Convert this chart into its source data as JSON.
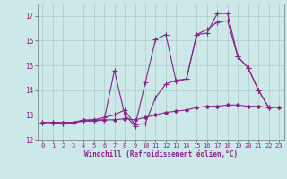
{
  "background_color": "#cce8e8",
  "grid_color": "#aacccc",
  "line_color": "#882288",
  "xlim": [
    -0.5,
    23.5
  ],
  "ylim": [
    12,
    17.5
  ],
  "yticks": [
    12,
    13,
    14,
    15,
    16,
    17
  ],
  "xticks": [
    0,
    1,
    2,
    3,
    4,
    5,
    6,
    7,
    8,
    9,
    10,
    11,
    12,
    13,
    14,
    15,
    16,
    17,
    18,
    19,
    20,
    21,
    22,
    23
  ],
  "xlabel": "Windchill (Refroidissement éolien,°C)",
  "series": [
    {
      "x": [
        0,
        1,
        2,
        3,
        4,
        5,
        6,
        7,
        8,
        9,
        10,
        11,
        12,
        13,
        14,
        15,
        16,
        17,
        18,
        19,
        20,
        21,
        22,
        23
      ],
      "y": [
        12.7,
        12.7,
        12.7,
        12.7,
        12.8,
        12.8,
        12.8,
        12.8,
        12.85,
        12.8,
        12.9,
        13.0,
        13.1,
        13.15,
        13.2,
        13.3,
        13.35,
        13.35,
        13.4,
        13.4,
        13.35,
        13.35,
        13.3,
        13.3
      ],
      "marker": "D",
      "markersize": 2.0,
      "linewidth": 0.8
    },
    {
      "x": [
        0,
        1,
        2,
        3,
        4,
        5,
        6,
        7,
        8,
        9,
        10,
        11,
        12,
        13,
        14,
        15,
        16,
        17,
        18,
        19,
        20,
        21,
        22
      ],
      "y": [
        12.7,
        12.7,
        12.65,
        12.7,
        12.75,
        12.75,
        12.8,
        14.8,
        13.0,
        12.55,
        14.3,
        16.05,
        16.25,
        14.35,
        14.45,
        16.25,
        16.3,
        17.1,
        17.1,
        15.35,
        14.9,
        14.0,
        13.3
      ],
      "marker": "+",
      "markersize": 4,
      "linewidth": 0.8
    },
    {
      "x": [
        0,
        1,
        2,
        3,
        4,
        5,
        6,
        7,
        8,
        9,
        10,
        11,
        12,
        13,
        14,
        15,
        16,
        17,
        18,
        19,
        20,
        21,
        22
      ],
      "y": [
        12.7,
        12.7,
        12.65,
        12.7,
        12.75,
        12.8,
        12.9,
        13.0,
        13.2,
        12.6,
        12.65,
        13.7,
        14.25,
        14.4,
        14.45,
        16.25,
        16.45,
        16.75,
        16.8,
        15.35,
        14.9,
        14.0,
        13.3
      ],
      "marker": "+",
      "markersize": 4,
      "linewidth": 0.8
    }
  ]
}
